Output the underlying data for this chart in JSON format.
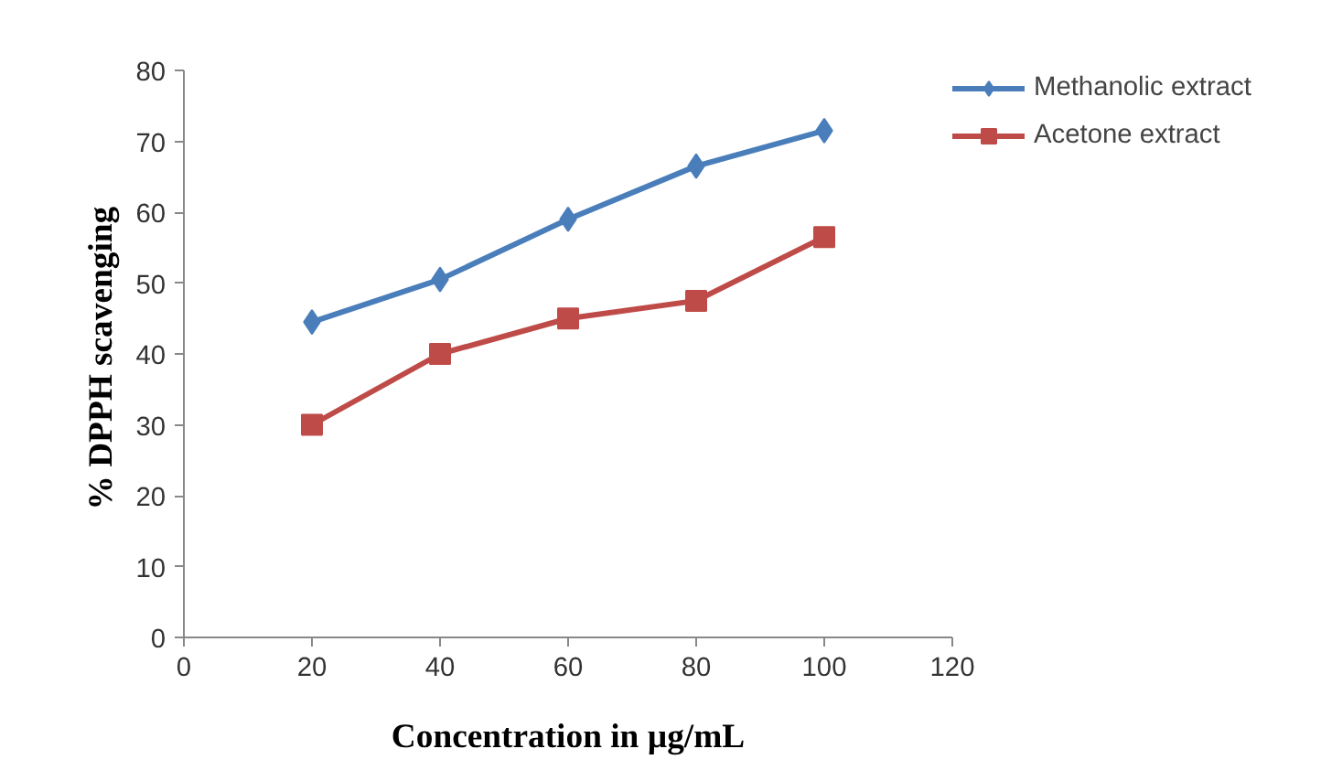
{
  "chart_data": {
    "type": "line",
    "xlabel": "Concentration in µg/mL",
    "ylabel": "% DPPH  scavenging",
    "x": [
      20,
      40,
      60,
      80,
      100
    ],
    "series": [
      {
        "name": "Methanolic extract",
        "color": "#4a7ebb",
        "values": [
          44.5,
          50.5,
          59,
          66.5,
          71.5
        ],
        "marker": "diamond"
      },
      {
        "name": "Acetone extract",
        "color": "#be4b48",
        "values": [
          30,
          40,
          45,
          47.5,
          56.5
        ],
        "marker": "square"
      }
    ],
    "xlim": [
      0,
      120
    ],
    "xticks": [
      0,
      20,
      40,
      60,
      80,
      100,
      120
    ],
    "ylim": [
      0,
      80
    ],
    "yticks": [
      0,
      10,
      20,
      30,
      40,
      50,
      60,
      70,
      80
    ],
    "grid": false,
    "legend": "top right",
    "line_style": "solid"
  }
}
